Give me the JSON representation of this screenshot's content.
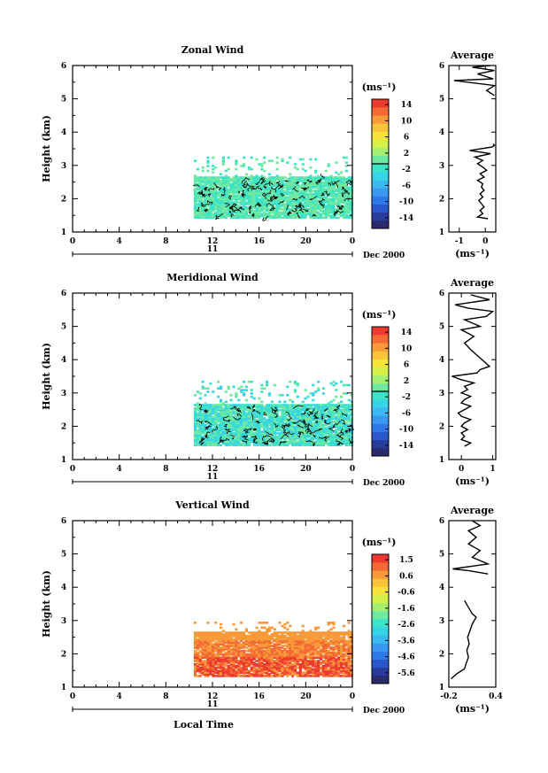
{
  "figure": {
    "xlabel": "Local Time",
    "date_label": "Dec 2000",
    "day_label": "11"
  },
  "chart_data": [
    {
      "type": "heatmap",
      "title": "Zonal Wind",
      "ylabel": "Height (km)",
      "xlim": [
        0,
        24
      ],
      "ylim": [
        1,
        6
      ],
      "x_ticks": [
        "0",
        "4",
        "8",
        "12",
        "16",
        "20",
        "0"
      ],
      "y_ticks": [
        "1",
        "2",
        "3",
        "4",
        "5",
        "6"
      ],
      "data_extent": {
        "x_start": 10.4,
        "x_end": 24,
        "height_min": 1.4,
        "height_max": 3.2
      },
      "dominant_value_range": [
        -2,
        2
      ],
      "colorbar": {
        "unit": "(ms⁻¹)",
        "tick_labels": [
          "14",
          "10",
          "6",
          "2",
          "-2",
          "-6",
          "-10",
          "-14"
        ],
        "range": [
          -16,
          16
        ],
        "zero_line": 0
      },
      "average_profile": {
        "title": "Average",
        "xlabel": "(ms⁻¹)",
        "x_ticks": [
          "-1",
          "0"
        ],
        "xlim": [
          -1.4,
          0.4
        ],
        "ylim": [
          1,
          6
        ],
        "values": [
          [
            0.1,
            1.4
          ],
          [
            -0.3,
            1.45
          ],
          [
            -0.1,
            1.55
          ],
          [
            -0.2,
            1.65
          ],
          [
            -0.05,
            1.75
          ],
          [
            -0.15,
            1.85
          ],
          [
            -0.25,
            1.95
          ],
          [
            -0.1,
            2.05
          ],
          [
            -0.2,
            2.15
          ],
          [
            -0.05,
            2.25
          ],
          [
            -0.15,
            2.35
          ],
          [
            -0.1,
            2.45
          ],
          [
            -0.3,
            2.55
          ],
          [
            -0.05,
            2.65
          ],
          [
            -0.2,
            2.75
          ],
          [
            0.05,
            2.85
          ],
          [
            -0.1,
            2.95
          ],
          [
            -0.3,
            3.05
          ],
          [
            -0.1,
            3.15
          ],
          [
            -0.4,
            3.25
          ],
          [
            0.2,
            3.35
          ],
          [
            -0.6,
            3.45
          ],
          [
            0.25,
            3.55
          ],
          [
            0.35,
            3.6
          ],
          [
            0.3,
            3.65
          ],
          [
            0.35,
            5.1
          ],
          [
            0.05,
            5.25
          ],
          [
            0.35,
            5.4
          ],
          [
            -1.2,
            5.55
          ],
          [
            0.3,
            5.6
          ],
          [
            -0.3,
            5.75
          ],
          [
            0.35,
            5.85
          ],
          [
            -0.5,
            5.95
          ],
          [
            0.2,
            6.0
          ]
        ]
      }
    },
    {
      "type": "heatmap",
      "title": "Meridional Wind",
      "ylabel": "Height (km)",
      "xlim": [
        0,
        24
      ],
      "ylim": [
        1,
        6
      ],
      "x_ticks": [
        "0",
        "4",
        "8",
        "12",
        "16",
        "20",
        "0"
      ],
      "y_ticks": [
        "1",
        "2",
        "3",
        "4",
        "5",
        "6"
      ],
      "data_extent": {
        "x_start": 10.4,
        "x_end": 24,
        "height_min": 1.4,
        "height_max": 3.3
      },
      "dominant_value_range": [
        -4,
        2
      ],
      "colorbar": {
        "unit": "(ms⁻¹)",
        "tick_labels": [
          "14",
          "10",
          "6",
          "2",
          "-2",
          "-6",
          "-10",
          "-14"
        ],
        "range": [
          -16,
          16
        ],
        "zero_line": 0
      },
      "average_profile": {
        "title": "Average",
        "xlabel": "(ms⁻¹)",
        "x_ticks": [
          "0",
          "1"
        ],
        "xlim": [
          -0.4,
          1.1
        ],
        "ylim": [
          1,
          6
        ],
        "values": [
          [
            0.1,
            1.4
          ],
          [
            0.3,
            1.5
          ],
          [
            0.0,
            1.6
          ],
          [
            0.1,
            1.7
          ],
          [
            0.0,
            1.8
          ],
          [
            0.2,
            1.9
          ],
          [
            0.0,
            2.0
          ],
          [
            0.1,
            2.1
          ],
          [
            0.3,
            2.2
          ],
          [
            0.0,
            2.3
          ],
          [
            -0.1,
            2.4
          ],
          [
            0.1,
            2.5
          ],
          [
            0.3,
            2.6
          ],
          [
            0.0,
            2.7
          ],
          [
            0.1,
            2.8
          ],
          [
            0.3,
            2.9
          ],
          [
            0.0,
            3.0
          ],
          [
            0.2,
            3.1
          ],
          [
            0.1,
            3.2
          ],
          [
            0.4,
            3.3
          ],
          [
            0.0,
            3.4
          ],
          [
            -0.3,
            3.5
          ],
          [
            0.5,
            3.6
          ],
          [
            0.6,
            3.7
          ],
          [
            0.9,
            3.8
          ],
          [
            0.3,
            4.3
          ],
          [
            0.1,
            4.5
          ],
          [
            0.4,
            4.7
          ],
          [
            0.0,
            4.9
          ],
          [
            0.6,
            5.0
          ],
          [
            0.1,
            5.2
          ],
          [
            0.8,
            5.3
          ],
          [
            1.0,
            5.45
          ],
          [
            0.2,
            5.55
          ],
          [
            -0.2,
            5.65
          ],
          [
            0.9,
            5.8
          ],
          [
            0.3,
            5.95
          ]
        ]
      }
    },
    {
      "type": "heatmap",
      "title": "Vertical Wind",
      "ylabel": "Height (km)",
      "xlim": [
        0,
        24
      ],
      "ylim": [
        1,
        6
      ],
      "x_ticks": [
        "0",
        "4",
        "8",
        "12",
        "16",
        "20",
        "0"
      ],
      "y_ticks": [
        "1",
        "2",
        "3",
        "4",
        "5",
        "6"
      ],
      "data_extent": {
        "x_start": 10.4,
        "x_end": 24,
        "height_min": 1.3,
        "height_max": 2.9
      },
      "dominant_value_range": [
        0.6,
        1.5
      ],
      "colorbar": {
        "unit": "(ms⁻¹)",
        "tick_labels": [
          "1.5",
          "0.6",
          "-0.6",
          "-1.6",
          "-2.6",
          "-3.6",
          "-4.6",
          "-5.6"
        ],
        "range": [
          -6,
          2
        ]
      },
      "average_profile": {
        "title": "Average",
        "xlabel": "(ms⁻¹)",
        "x_ticks": [
          "-0.2",
          "0.4"
        ],
        "xlim": [
          -0.2,
          0.4
        ],
        "ylim": [
          1,
          6
        ],
        "values": [
          [
            -0.17,
            1.25
          ],
          [
            -0.1,
            1.4
          ],
          [
            0.0,
            1.55
          ],
          [
            0.02,
            1.7
          ],
          [
            0.05,
            1.9
          ],
          [
            0.03,
            2.1
          ],
          [
            0.06,
            2.3
          ],
          [
            0.04,
            2.5
          ],
          [
            0.07,
            2.7
          ],
          [
            0.1,
            2.9
          ],
          [
            0.15,
            3.1
          ],
          [
            0.1,
            3.2
          ],
          [
            0.05,
            3.4
          ],
          [
            0.0,
            3.6
          ],
          [
            0.3,
            4.4
          ],
          [
            0.05,
            4.5
          ],
          [
            -0.15,
            4.55
          ],
          [
            0.3,
            4.7
          ],
          [
            0.1,
            4.9
          ],
          [
            0.2,
            5.1
          ],
          [
            0.05,
            5.3
          ],
          [
            0.15,
            5.5
          ],
          [
            0.05,
            5.7
          ],
          [
            0.2,
            5.85
          ],
          [
            0.1,
            6.0
          ]
        ]
      }
    }
  ]
}
